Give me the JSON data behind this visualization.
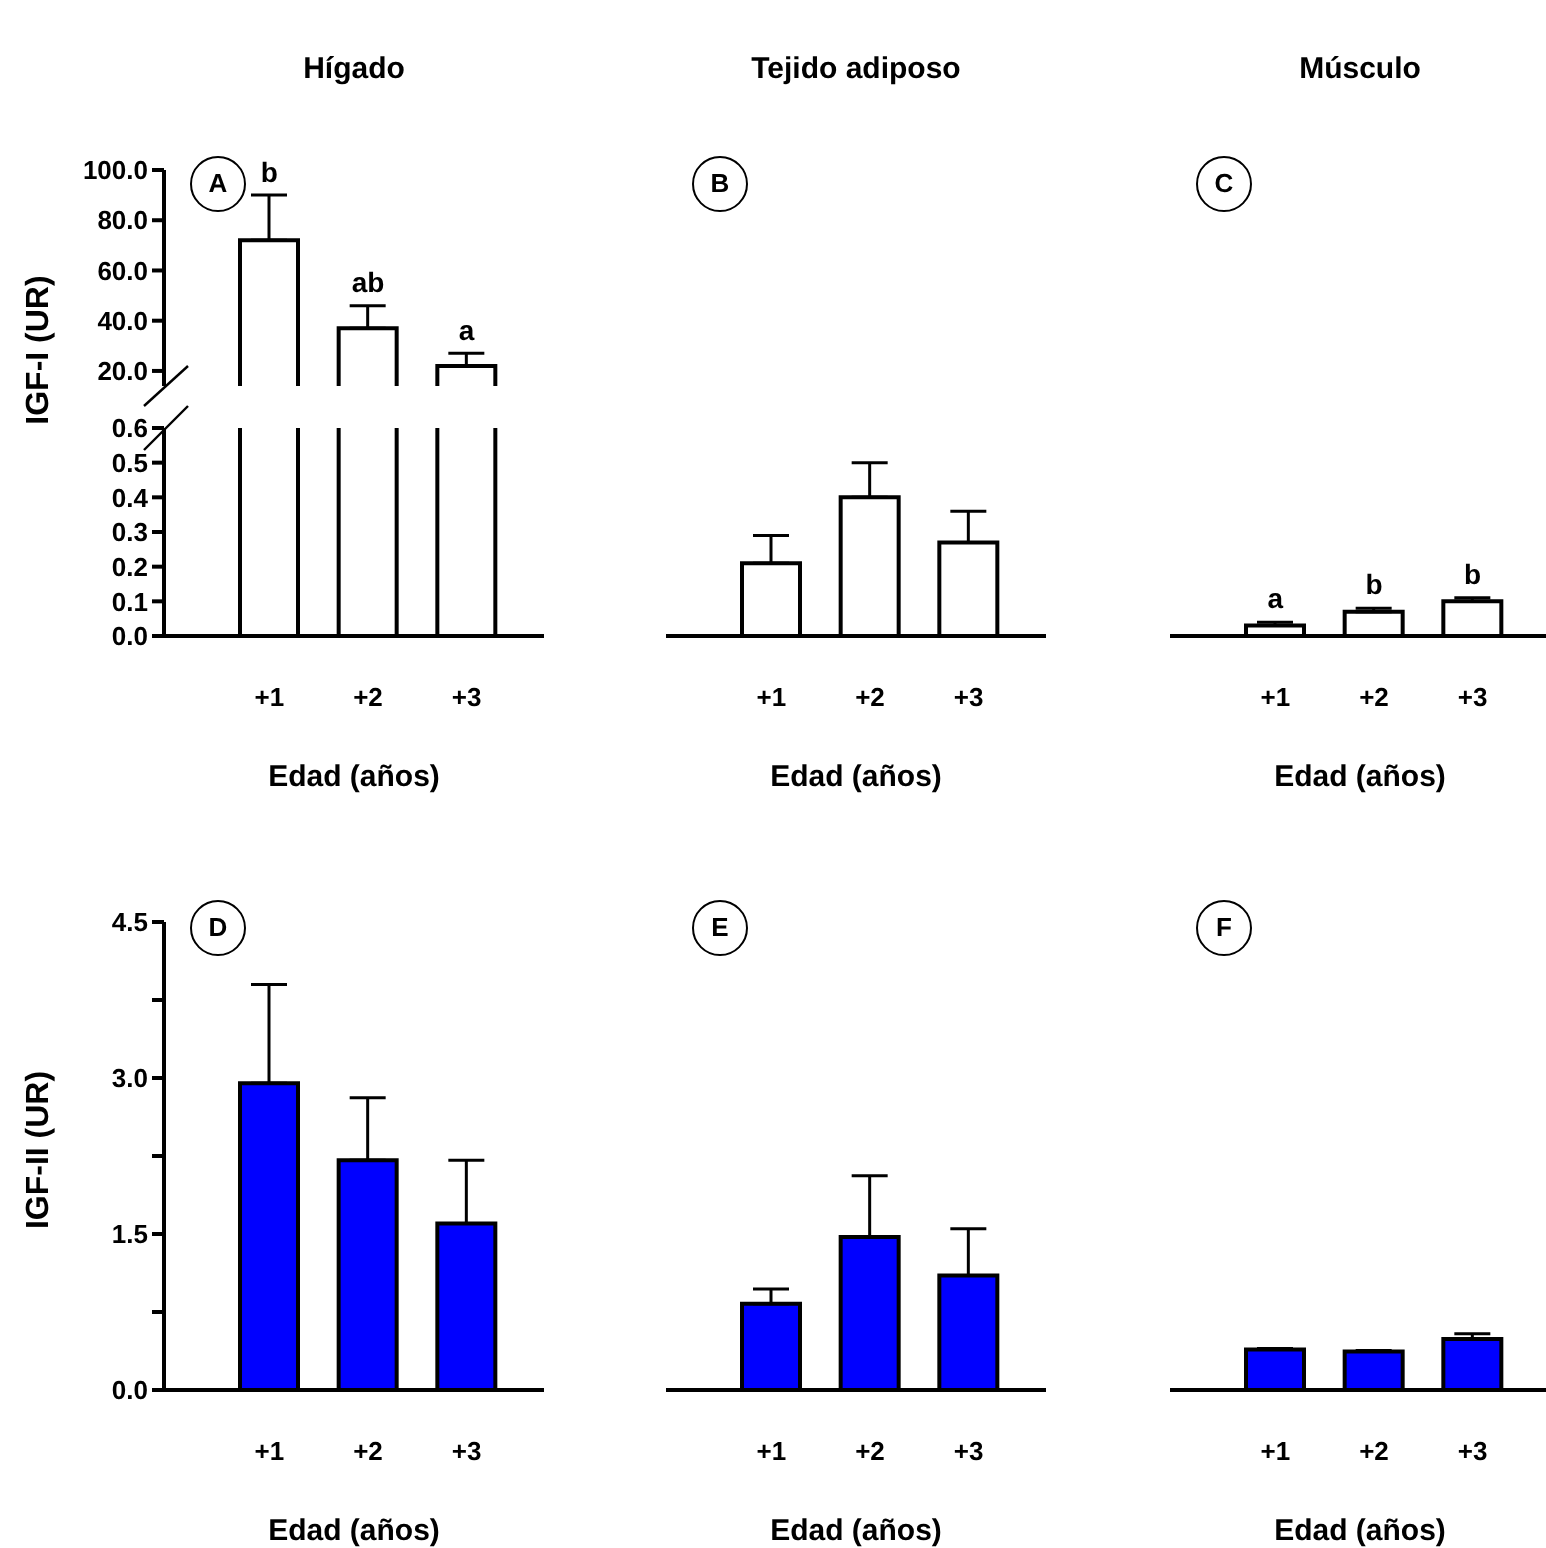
{
  "chart_data": [
    {
      "type": "bar",
      "title": "Hígado",
      "categories": [
        "+1",
        "+2",
        "+3"
      ],
      "values": [
        72,
        37,
        22
      ],
      "errors": [
        [
          72,
          90
        ],
        [
          37,
          46
        ],
        [
          22,
          27
        ]
      ],
      "color": "#ffffff",
      "ylim": [
        14,
        100
      ],
      "yticks": [
        {
          "value": 20,
          "label": "20.0"
        },
        {
          "value": 40,
          "label": "40.0"
        },
        {
          "value": 60,
          "label": "60.0"
        },
        {
          "value": 80,
          "label": "80.0"
        },
        {
          "value": 100,
          "label": "100.0"
        }
      ],
      "tick_labels": "y",
      "annotations": [
        "A",
        {
          "text": "b",
          "x": "+1",
          "y": 90
        },
        {
          "text": "ab",
          "x": "+2",
          "y": 46
        },
        {
          "text": "a",
          "x": "+3",
          "y": 27
        }
      ]
    },
    {
      "type": "bar",
      "ylabel": "IGF-I (UR)",
      "xlabel": "Edad (años)",
      "categories": [
        "+1",
        "+2",
        "+3"
      ],
      "values": [
        null,
        null,
        null
      ],
      "color": "#ffffff",
      "ylim": [
        0,
        0.6
      ],
      "yticks": [
        {
          "value": 0,
          "label": "0.0"
        },
        0.1,
        0.2,
        0.3,
        0.4,
        0.5,
        0.6
      ]
    },
    {
      "type": "bar",
      "title": "Tejido adiposo",
      "xlabel": "Edad (años)",
      "categories": [
        "+1",
        "+2",
        "+3"
      ],
      "values": [
        0.21,
        0.4,
        0.27
      ],
      "errors": [
        [
          0.21,
          0.29
        ],
        [
          0.4,
          0.5
        ],
        [
          0.27,
          0.36
        ]
      ],
      "color": "#ffffff",
      "ylim": [
        0,
        0.6
      ],
      "tick_labels": "x",
      "annotations": [
        "B"
      ]
    },
    {
      "type": "bar",
      "title": "Músculo",
      "xlabel": "Edad (años)",
      "categories": [
        "+1",
        "+2",
        "+3"
      ],
      "values": [
        0.03,
        0.07,
        0.1
      ],
      "errors": [
        [
          0.03,
          0.04
        ],
        [
          0.07,
          0.08
        ],
        [
          0.1,
          0.11
        ]
      ],
      "color": "#ffffff",
      "ylim": [
        0,
        0.6
      ],
      "tick_labels": "x",
      "annotations": [
        "C",
        {
          "text": "a",
          "x": "+1",
          "y": 0.04
        },
        {
          "text": "b",
          "x": "+2",
          "y": 0.08
        },
        {
          "text": "b",
          "x": "+3",
          "y": 0.11
        }
      ]
    },
    {
      "type": "bar",
      "ylabel": "IGF-II (UR)",
      "xlabel": "Edad (años)",
      "categories": [
        "+1",
        "+2",
        "+3"
      ],
      "values": [
        2.95,
        2.21,
        1.6
      ],
      "errors": [
        [
          2.95,
          3.9
        ],
        [
          2.21,
          2.81
        ],
        [
          1.6,
          2.21
        ]
      ],
      "color": "#0000ff",
      "ylim": [
        0,
        4.5
      ],
      "yticks": [
        {
          "value": 0,
          "label": "0.0"
        },
        {
          "value": 0.75,
          "label": null
        },
        1.5,
        {
          "value": 2.25,
          "label": null
        },
        {
          "value": 3,
          "label": "3.0"
        },
        {
          "value": 3.75,
          "label": null
        },
        4.5
      ],
      "annotations": [
        "D"
      ]
    },
    {
      "type": "bar",
      "xlabel": "Edad (años)",
      "categories": [
        "+1",
        "+2",
        "+3"
      ],
      "values": [
        0.83,
        1.47,
        1.1
      ],
      "errors": [
        [
          0.83,
          0.97
        ],
        [
          1.47,
          2.06
        ],
        [
          1.1,
          1.55
        ]
      ],
      "color": "#0000ff",
      "ylim": [
        0,
        4.5
      ],
      "tick_labels": "x",
      "annotations": [
        "E"
      ]
    },
    {
      "type": "bar",
      "xlabel": "Edad (años)",
      "categories": [
        "+1",
        "+2",
        "+3"
      ],
      "values": [
        0.39,
        0.37,
        0.49
      ],
      "errors": [
        [
          0.39,
          0.4
        ],
        [
          0.37,
          0.38
        ],
        [
          0.49,
          0.54
        ]
      ],
      "color": "#0000ff",
      "ylim": [
        0,
        4.5
      ],
      "tick_labels": "x",
      "annotations": [
        "F"
      ]
    }
  ]
}
